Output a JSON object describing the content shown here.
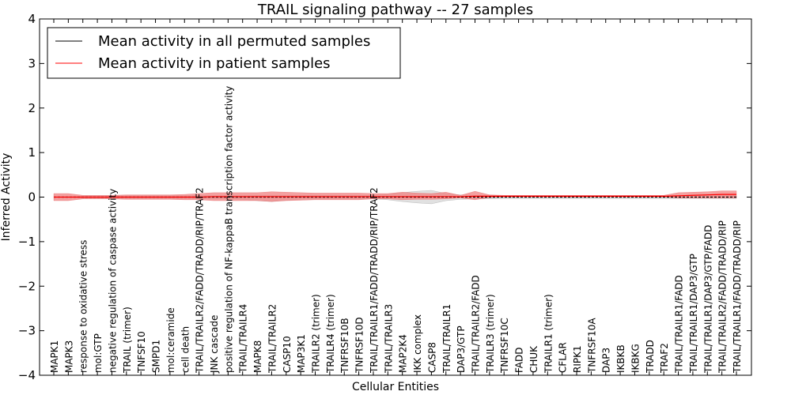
{
  "chart_data": {
    "type": "line",
    "title": "TRAIL signaling pathway -- 27 samples",
    "xlabel": "Cellular Entities",
    "ylabel": "Inferred Activity",
    "ylim": [
      -4,
      4
    ],
    "yticks": [
      -4,
      -3,
      -2,
      -1,
      0,
      1,
      2,
      3,
      4
    ],
    "ytick_labels": [
      "−4",
      "−3",
      "−2",
      "−1",
      "0",
      "1",
      "2",
      "3",
      "4"
    ],
    "grid": false,
    "legend_position": "top-left",
    "categories": [
      "MAPK1",
      "MAPK3",
      "response to oxidative stress",
      "mol:GTP",
      "negative regulation of caspase activity",
      "TRAIL (trimer)",
      "TNFSF10",
      "SMPD1",
      "mol:ceramide",
      "cell death",
      "TRAIL/TRAILR2/FADD/TRADD/RIP/TRAF2",
      "JNK cascade",
      "positive regulation of NF-kappaB transcription factor activity",
      "TRAIL/TRAILR4",
      "MAPK8",
      "TRAIL/TRAILR2",
      "CASP10",
      "MAP3K1",
      "TRAILR2 (trimer)",
      "TRAILR4 (trimer)",
      "TNFRSF10B",
      "TNFRSF10D",
      "TRAIL/TRAILR1/FADD/TRADD/RIP/TRAF2",
      "TRAIL/TRAILR3",
      "MAP2K4",
      "IKK complex",
      "CASP8",
      "TRAIL/TRAILR1",
      "DAP3/GTP",
      "TRAIL/TRAILR2/FADD",
      "TRAILR3 (trimer)",
      "TNFRSF10C",
      "FADD",
      "CHUK",
      "TRAILR1 (trimer)",
      "CFLAR",
      "RIPK1",
      "TNFRSF10A",
      "DAP3",
      "IKBKB",
      "IKBKG",
      "TRADD",
      "TRAF2",
      "TRAIL/TRAILR1/FADD",
      "TRAIL/TRAILR1/DAP3/GTP",
      "TRAIL/TRAILR1/DAP3/GTP/FADD",
      "TRAIL/TRAILR2/FADD/TRADD/RIP",
      "TRAIL/TRAILR1/FADD/TRADD/RIP"
    ],
    "series": [
      {
        "name": "Mean activity in all permuted samples",
        "color": "#000000",
        "values": [
          0.0,
          0.0,
          0.0,
          0.0,
          0.0,
          0.0,
          0.0,
          0.0,
          0.0,
          0.0,
          0.0,
          0.0,
          0.0,
          0.0,
          0.0,
          0.0,
          0.0,
          0.0,
          0.0,
          0.0,
          0.0,
          0.0,
          0.0,
          0.0,
          0.0,
          0.0,
          0.0,
          0.0,
          0.0,
          0.0,
          0.0,
          0.0,
          0.0,
          0.0,
          0.0,
          0.0,
          0.0,
          0.0,
          0.0,
          0.0,
          0.0,
          0.0,
          0.0,
          0.0,
          0.0,
          0.0,
          0.0,
          0.0
        ],
        "band_upper": [
          0.0,
          0.0,
          0.02,
          0.02,
          0.02,
          0.03,
          0.03,
          0.03,
          0.03,
          0.03,
          0.03,
          0.03,
          0.03,
          0.03,
          0.04,
          0.04,
          0.04,
          0.04,
          0.04,
          0.04,
          0.04,
          0.04,
          0.04,
          0.06,
          0.1,
          0.13,
          0.15,
          0.08,
          0.05,
          0.04,
          0.04,
          0.03,
          0.03,
          0.03,
          0.03,
          0.03,
          0.03,
          0.03,
          0.03,
          0.03,
          0.03,
          0.03,
          0.03,
          0.03,
          0.03,
          0.03,
          0.03,
          0.03
        ],
        "band_lower": [
          0.0,
          0.0,
          -0.02,
          -0.02,
          -0.02,
          -0.03,
          -0.03,
          -0.03,
          -0.03,
          -0.03,
          -0.03,
          -0.03,
          -0.03,
          -0.05,
          -0.08,
          -0.1,
          -0.07,
          -0.05,
          -0.04,
          -0.04,
          -0.04,
          -0.04,
          -0.04,
          -0.06,
          -0.1,
          -0.13,
          -0.15,
          -0.08,
          -0.05,
          -0.04,
          -0.04,
          -0.03,
          -0.03,
          -0.03,
          -0.03,
          -0.03,
          -0.03,
          -0.03,
          -0.03,
          -0.03,
          -0.03,
          -0.03,
          -0.03,
          -0.03,
          -0.03,
          -0.03,
          -0.03,
          -0.03
        ]
      },
      {
        "name": "Mean activity in patient samples",
        "color": "#ff0000",
        "band_color": "#f08080",
        "values": [
          0.0,
          0.0,
          0.0,
          0.0,
          0.0,
          0.0,
          0.0,
          0.0,
          0.0,
          0.0,
          0.0,
          0.01,
          0.01,
          0.01,
          0.01,
          0.01,
          0.01,
          0.01,
          0.01,
          0.01,
          0.01,
          0.01,
          0.01,
          0.01,
          0.01,
          0.01,
          0.01,
          0.01,
          0.01,
          0.02,
          0.02,
          0.02,
          0.02,
          0.02,
          0.02,
          0.02,
          0.02,
          0.02,
          0.02,
          0.02,
          0.02,
          0.02,
          0.02,
          0.03,
          0.04,
          0.05,
          0.06,
          0.06
        ],
        "band_upper": [
          0.08,
          0.08,
          0.04,
          0.04,
          0.04,
          0.05,
          0.05,
          0.05,
          0.05,
          0.06,
          0.08,
          0.1,
          0.1,
          0.1,
          0.1,
          0.12,
          0.11,
          0.1,
          0.09,
          0.09,
          0.09,
          0.09,
          0.08,
          0.08,
          0.11,
          0.09,
          0.08,
          0.11,
          0.04,
          0.13,
          0.05,
          0.04,
          0.04,
          0.04,
          0.04,
          0.04,
          0.04,
          0.04,
          0.04,
          0.04,
          0.04,
          0.04,
          0.04,
          0.1,
          0.11,
          0.12,
          0.14,
          0.14
        ],
        "band_lower": [
          -0.08,
          -0.08,
          -0.04,
          -0.04,
          -0.04,
          -0.05,
          -0.05,
          -0.05,
          -0.05,
          -0.06,
          -0.06,
          -0.08,
          -0.08,
          -0.08,
          -0.08,
          -0.1,
          -0.08,
          -0.07,
          -0.06,
          -0.06,
          -0.06,
          -0.06,
          -0.04,
          -0.04,
          -0.06,
          -0.05,
          -0.05,
          -0.04,
          -0.02,
          -0.06,
          -0.01,
          0.0,
          0.0,
          0.0,
          0.0,
          0.0,
          0.0,
          0.0,
          0.0,
          0.0,
          0.0,
          0.0,
          0.0,
          -0.02,
          -0.02,
          -0.02,
          -0.02,
          -0.02
        ]
      }
    ]
  }
}
